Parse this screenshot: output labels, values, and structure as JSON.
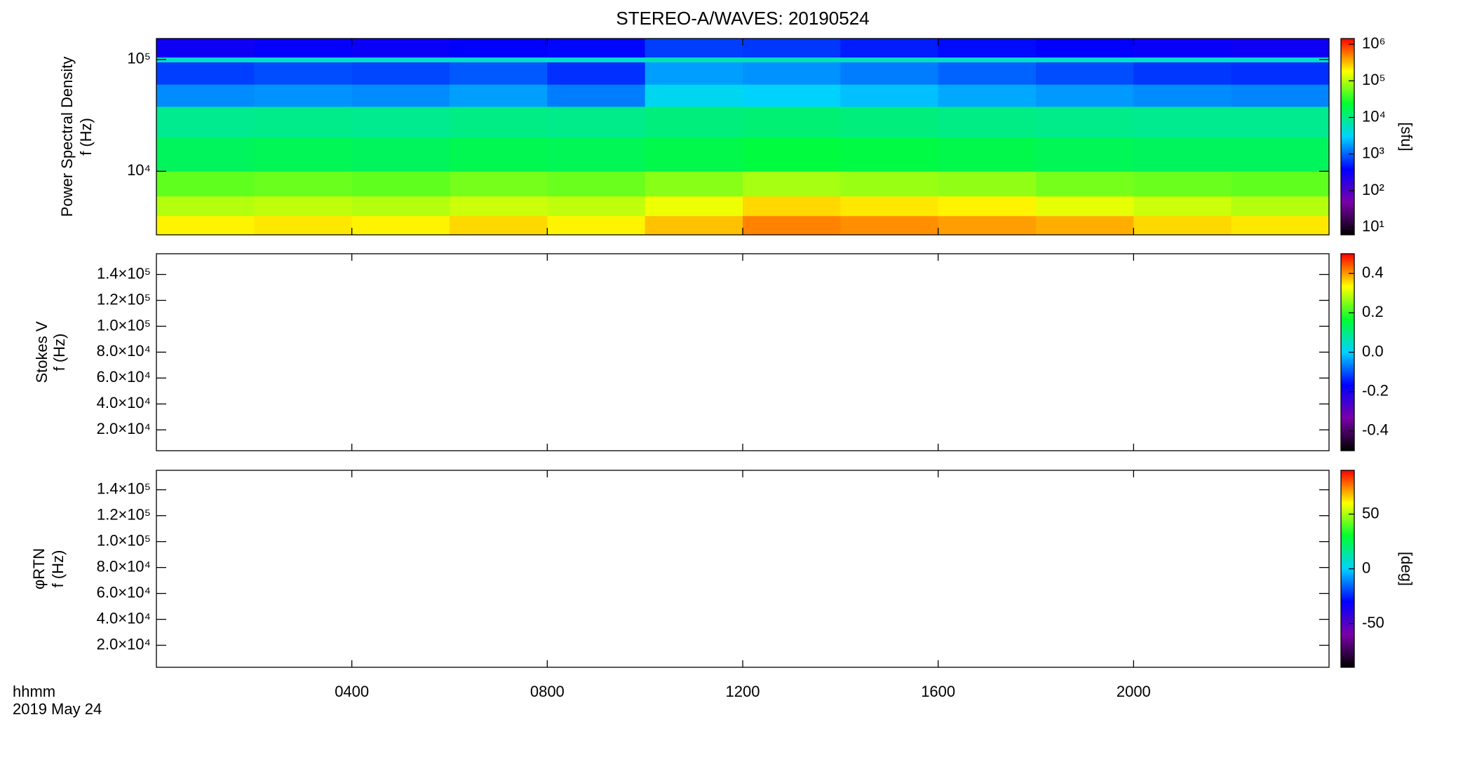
{
  "chart_data": [
    {
      "type": "heatmap",
      "title": "STEREO-A/WAVES: 20190524",
      "ylabel": [
        "Power Spectral Density",
        "f (Hz)"
      ],
      "ylog": true,
      "ylim": [
        2700,
        154000
      ],
      "yticks": [
        {
          "value": 10000,
          "label": "10⁴"
        },
        {
          "value": 100000,
          "label": "10⁵"
        }
      ],
      "zlog": true,
      "zlim": [
        6.2,
        1430000
      ],
      "zticks": [
        {
          "value": 10,
          "label": "10¹"
        },
        {
          "value": 100,
          "label": "10²"
        },
        {
          "value": 1000,
          "label": "10³"
        },
        {
          "value": 10000,
          "label": "10⁴"
        },
        {
          "value": 100000,
          "label": "10⁵"
        },
        {
          "value": 1000000,
          "label": "10⁶"
        }
      ],
      "colorbar_label": "[sfu]",
      "colormap": [
        "#000000",
        "#7a00a8",
        "#0000ff",
        "#00d2ff",
        "#00ff30",
        "#ffff00",
        "#ff0000"
      ],
      "xbins": [
        0,
        2,
        4,
        6,
        8,
        10,
        12,
        14,
        16,
        18,
        20,
        22,
        24
      ],
      "ybins": [
        2700,
        4000,
        6000,
        10000,
        20000,
        38000,
        60000,
        95000,
        105000,
        154000
      ],
      "z": [
        [
          200000,
          220000,
          200000,
          250000,
          200000,
          300000,
          500000,
          450000,
          400000,
          350000,
          250000,
          220000
        ],
        [
          100000,
          110000,
          100000,
          120000,
          110000,
          160000,
          250000,
          220000,
          200000,
          150000,
          120000,
          100000
        ],
        [
          50000,
          55000,
          50000,
          60000,
          55000,
          70000,
          90000,
          80000,
          75000,
          60000,
          55000,
          50000
        ],
        [
          15000,
          16000,
          15000,
          17000,
          16000,
          18000,
          20000,
          19000,
          18000,
          16000,
          15000,
          15000
        ],
        [
          9000,
          9500,
          9000,
          10000,
          9500,
          11000,
          12000,
          11000,
          10000,
          9500,
          9000,
          9000
        ],
        [
          1500,
          1600,
          1500,
          1800,
          1300,
          3500,
          3000,
          2500,
          2000,
          1700,
          1500,
          1400
        ],
        [
          700,
          800,
          750,
          900,
          600,
          1800,
          1600,
          1300,
          1000,
          800,
          650,
          600
        ],
        [
          5000,
          5000,
          5000,
          5000,
          5000,
          6000,
          6000,
          5500,
          5000,
          5000,
          5000,
          5000
        ],
        [
          300,
          350,
          320,
          380,
          400,
          700,
          650,
          500,
          420,
          380,
          330,
          300
        ]
      ]
    },
    {
      "type": "heatmap",
      "ylabel": [
        "Stokes V",
        "f (Hz)"
      ],
      "ylim": [
        3900,
        156000
      ],
      "yticks": [
        {
          "value": 20000,
          "label": "2.0×10⁴"
        },
        {
          "value": 40000,
          "label": "4.0×10⁴"
        },
        {
          "value": 60000,
          "label": "6.0×10⁴"
        },
        {
          "value": 80000,
          "label": "8.0×10⁴"
        },
        {
          "value": 100000,
          "label": "1.0×10⁵"
        },
        {
          "value": 120000,
          "label": "1.2×10⁵"
        },
        {
          "value": 140000,
          "label": "1.4×10⁵"
        }
      ],
      "zlim": [
        -0.5,
        0.5
      ],
      "zticks": [
        -0.4,
        -0.2,
        {
          "value": 0,
          "label": "0.0"
        },
        0.2,
        0.4
      ],
      "colormap": [
        "#000000",
        "#7a00a8",
        "#0000ff",
        "#00d2ff",
        "#00ff30",
        "#ffff00",
        "#ff0000"
      ]
    },
    {
      "type": "heatmap",
      "ylabel": [
        "φRTN",
        "f (Hz)"
      ],
      "ylim": [
        3000,
        155000
      ],
      "yticks": [
        {
          "value": 20000,
          "label": "2.0×10⁴"
        },
        {
          "value": 40000,
          "label": "4.0×10⁴"
        },
        {
          "value": 60000,
          "label": "6.0×10⁴"
        },
        {
          "value": 80000,
          "label": "8.0×10⁴"
        },
        {
          "value": 100000,
          "label": "1.0×10⁵"
        },
        {
          "value": 120000,
          "label": "1.2×10⁵"
        },
        {
          "value": 140000,
          "label": "1.4×10⁵"
        }
      ],
      "zlim": [
        -90,
        90
      ],
      "zticks": [
        -50,
        0,
        50
      ],
      "colorbar_label": "[deg]",
      "colormap": [
        "#000000",
        "#7a00a8",
        "#0000ff",
        "#00d2ff",
        "#00ff30",
        "#ffff00",
        "#ff0000"
      ],
      "xlim": [
        0,
        24
      ],
      "xticks": [
        {
          "value": 4,
          "label": "0400"
        },
        {
          "value": 8,
          "label": "0800"
        },
        {
          "value": 12,
          "label": "1200"
        },
        {
          "value": 16,
          "label": "1600"
        },
        {
          "value": 20,
          "label": "2000"
        }
      ],
      "xlabel": [
        "hhmm",
        "2019 May 24"
      ]
    }
  ]
}
